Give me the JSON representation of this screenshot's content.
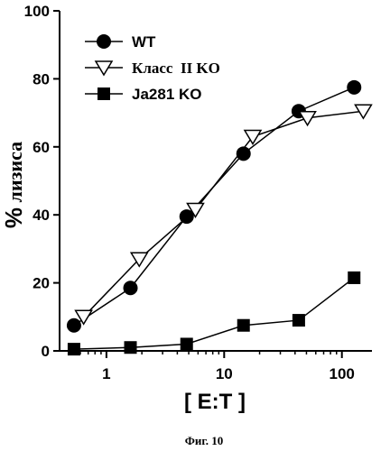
{
  "chart_data": {
    "type": "line",
    "xscale": "log",
    "xlabel": "[ E:T ]",
    "ylabel_main": "%",
    "ylabel_rest": " лизиса",
    "xlim": [
      0.4,
      180
    ],
    "ylim": [
      0,
      100
    ],
    "xticks": [
      1,
      10,
      100
    ],
    "xtick_labels": [
      "1",
      "10",
      "100"
    ],
    "yticks": [
      0,
      20,
      40,
      60,
      80,
      100
    ],
    "ytick_labels": [
      "0",
      "20",
      "40",
      "60",
      "80",
      "100"
    ],
    "grid": false,
    "legend_position": "top-left",
    "series": [
      {
        "name": "WT",
        "marker": "circle",
        "x": [
          0.53,
          1.6,
          4.8,
          14.6,
          43,
          127
        ],
        "y": [
          7.5,
          18.5,
          39.5,
          58,
          70.5,
          77.5
        ]
      },
      {
        "name": "Класс  II KO",
        "marker": "triangle-down-open",
        "x": [
          0.64,
          1.9,
          5.7,
          17.5,
          51,
          152
        ],
        "y": [
          10,
          27,
          41.5,
          63,
          68.5,
          70.5
        ]
      },
      {
        "name": "Ja281 KO",
        "marker": "square",
        "x": [
          0.53,
          1.6,
          4.8,
          14.6,
          43,
          127
        ],
        "y": [
          0.5,
          1,
          2,
          7.5,
          9,
          21.5
        ]
      }
    ]
  },
  "caption": "Фиг. 10",
  "colors": {
    "ink": "#000000",
    "open_fill": "#ffffff"
  }
}
